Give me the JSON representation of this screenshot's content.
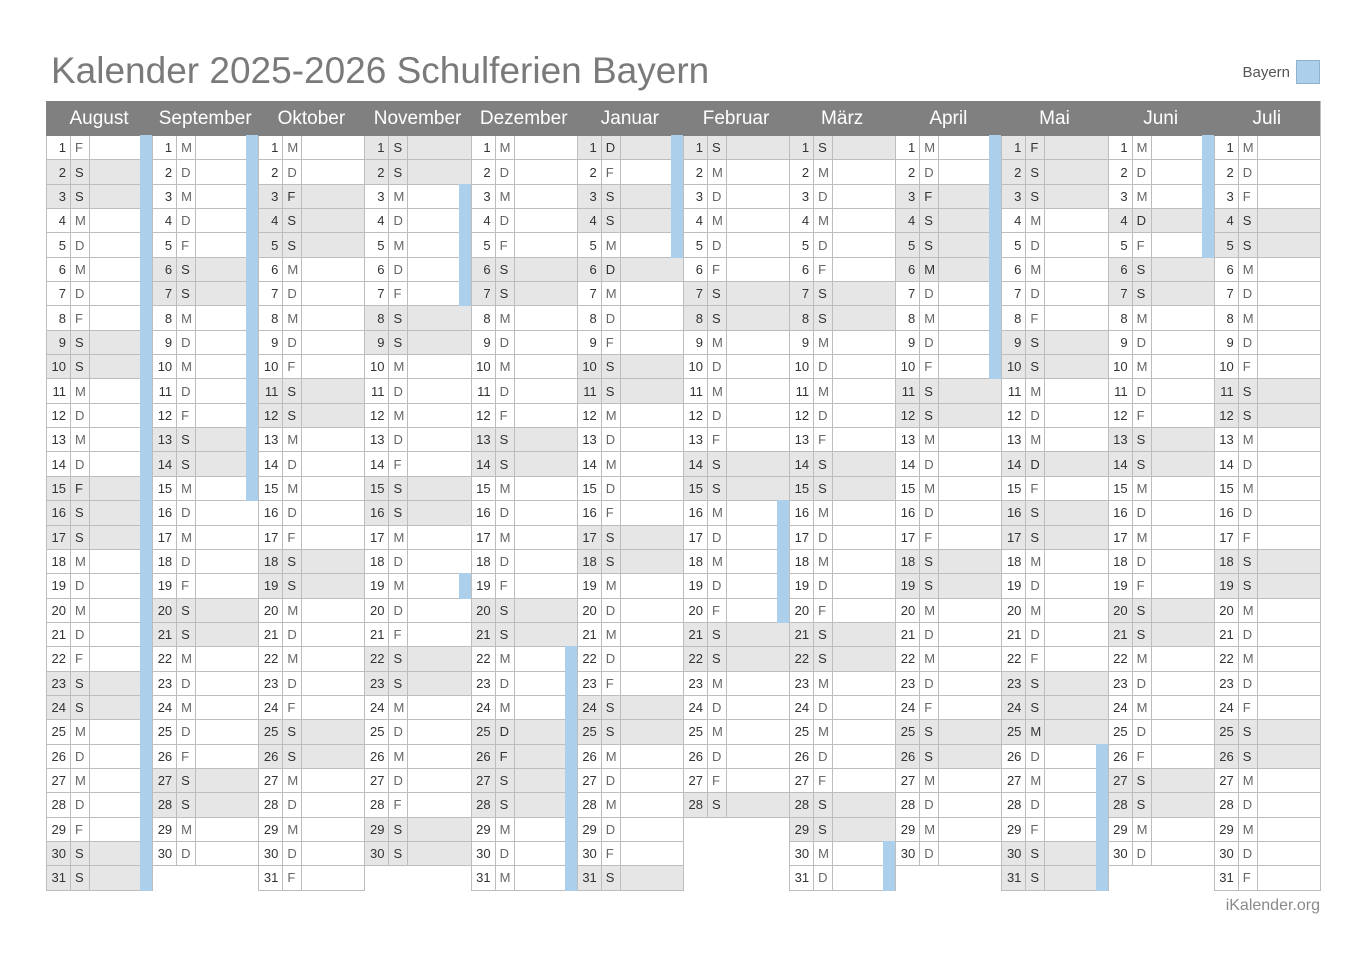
{
  "title": "Kalender 2025-2026 Schulferien Bayern",
  "legend": {
    "label": "Bayern",
    "color": "#acd0ec"
  },
  "footer": "iKalender.org",
  "colors": {
    "header_bg": "#808080",
    "weekend_bg": "#e6e6e6",
    "holiday": "#acd0ec"
  },
  "months": [
    {
      "name": "August",
      "year": 2025,
      "month": 8,
      "days": 31,
      "first_weekday": 5,
      "holidays": [
        1,
        2,
        3,
        4,
        5,
        6,
        7,
        8,
        9,
        10,
        11,
        12,
        13,
        14,
        15,
        16,
        17,
        18,
        19,
        20,
        21,
        22,
        23,
        24,
        25,
        26,
        27,
        28,
        29,
        30,
        31
      ]
    },
    {
      "name": "September",
      "year": 2025,
      "month": 9,
      "days": 30,
      "first_weekday": 1,
      "holidays": [
        1,
        2,
        3,
        4,
        5,
        6,
        7,
        8,
        9,
        10,
        11,
        12,
        13,
        14,
        15
      ]
    },
    {
      "name": "Oktober",
      "year": 2025,
      "month": 10,
      "days": 31,
      "first_weekday": 3,
      "holidays": []
    },
    {
      "name": "November",
      "year": 2025,
      "month": 11,
      "days": 30,
      "first_weekday": 6,
      "holidays": [
        3,
        4,
        5,
        6,
        7,
        19
      ]
    },
    {
      "name": "Dezember",
      "year": 2025,
      "month": 12,
      "days": 31,
      "first_weekday": 1,
      "holidays": [
        22,
        23,
        24,
        25,
        26,
        27,
        28,
        29,
        30,
        31
      ]
    },
    {
      "name": "Januar",
      "year": 2026,
      "month": 1,
      "days": 31,
      "first_weekday": 4,
      "holidays": [
        1,
        2,
        3,
        4,
        5
      ]
    },
    {
      "name": "Februar",
      "year": 2026,
      "month": 2,
      "days": 28,
      "first_weekday": 0,
      "holidays": [
        16,
        17,
        18,
        19,
        20
      ]
    },
    {
      "name": "März",
      "year": 2026,
      "month": 3,
      "days": 31,
      "first_weekday": 0,
      "holidays": [
        30,
        31
      ]
    },
    {
      "name": "April",
      "year": 2026,
      "month": 4,
      "days": 30,
      "first_weekday": 3,
      "holidays": [
        1,
        2,
        3,
        4,
        5,
        6,
        7,
        8,
        9,
        10
      ]
    },
    {
      "name": "Mai",
      "year": 2026,
      "month": 5,
      "days": 31,
      "first_weekday": 5,
      "holidays": [
        26,
        27,
        28,
        29,
        30,
        31
      ]
    },
    {
      "name": "Juni",
      "year": 2026,
      "month": 6,
      "days": 30,
      "first_weekday": 1,
      "holidays": [
        1,
        2,
        3,
        4,
        5
      ]
    },
    {
      "name": "Juli",
      "year": 2026,
      "month": 7,
      "days": 31,
      "first_weekday": 3,
      "holidays": []
    }
  ],
  "weekday_abbr": [
    "S",
    "M",
    "D",
    "M",
    "D",
    "F",
    "S"
  ],
  "extra_marked_days": {
    "Dezember": [
      25,
      26
    ],
    "Januar": [
      1,
      6
    ],
    "Oktober": [
      3
    ],
    "November": [
      1
    ],
    "April": [
      3,
      6
    ],
    "Mai": [
      1,
      14,
      25
    ],
    "Juni": [
      4
    ],
    "August": [
      15
    ]
  }
}
